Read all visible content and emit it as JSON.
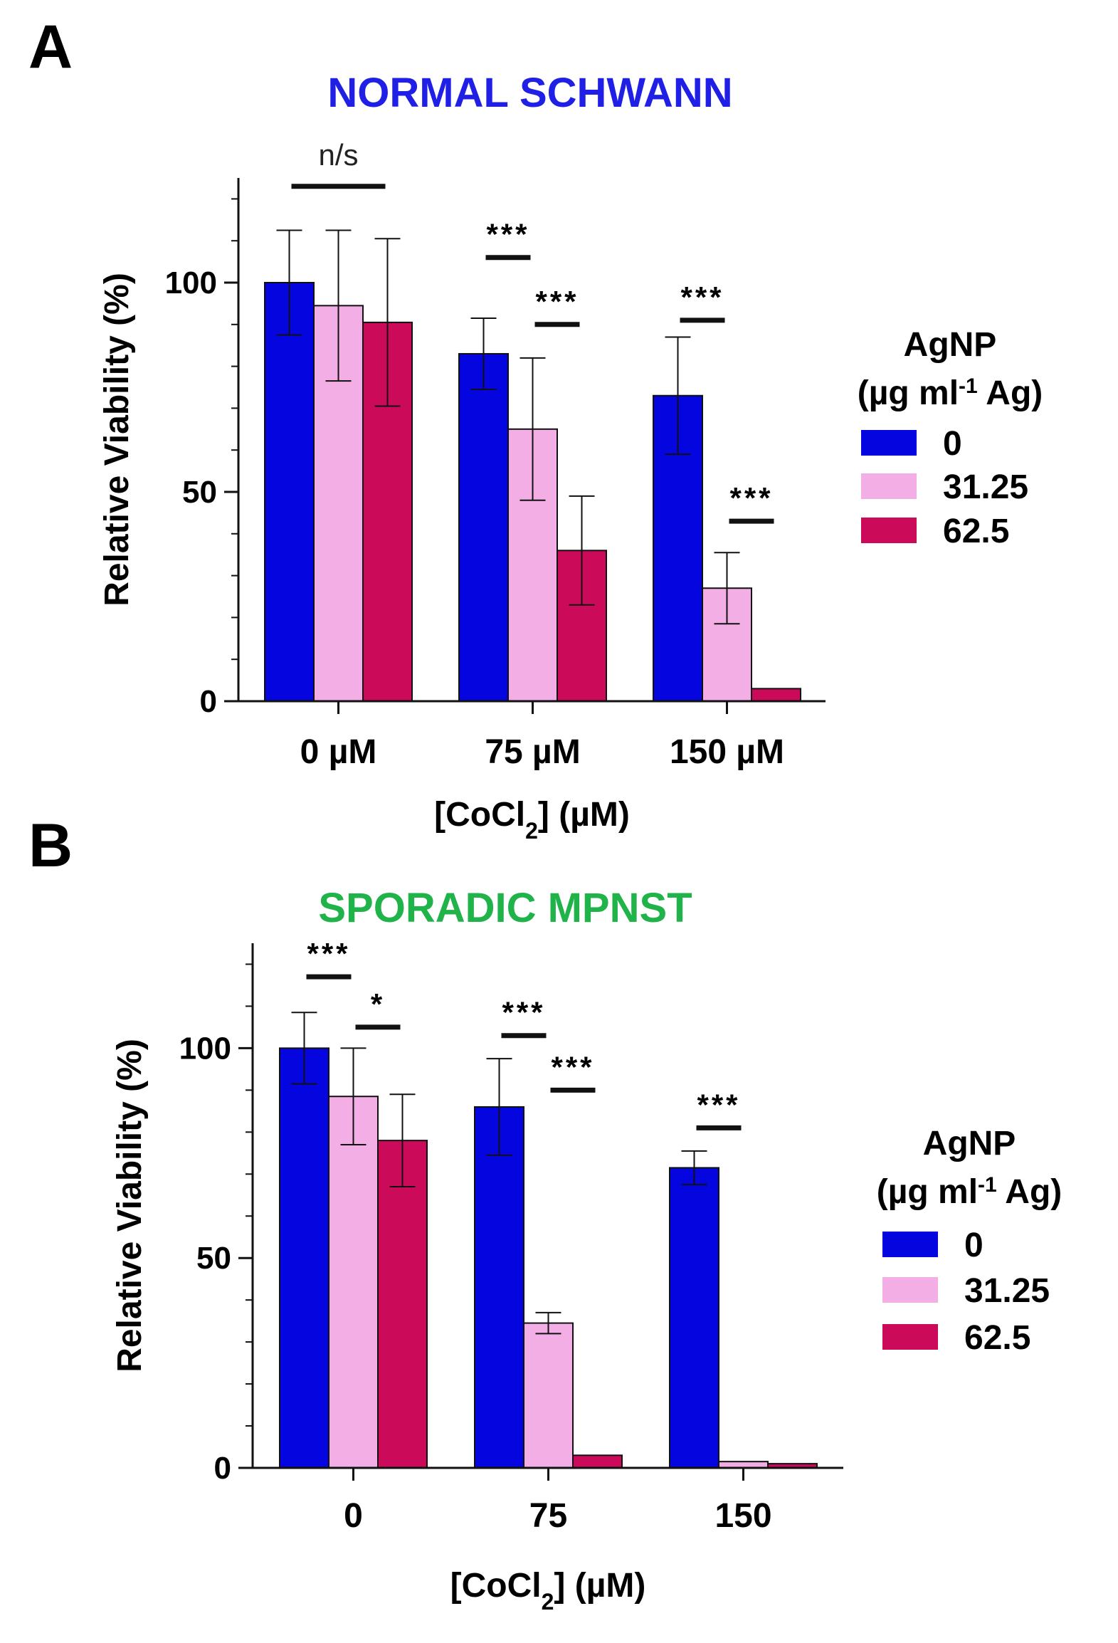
{
  "chart_data": [
    {
      "panel": "A",
      "type": "bar",
      "title": "NORMAL SCHWANN",
      "title_color": "#1f1fe6",
      "categories": [
        "0 µM",
        "75 µM",
        "150 µM"
      ],
      "xlabel": {
        "pre": "[CoCl",
        "sub": "2",
        "post": "] (µM)"
      },
      "ylabel": "Relative Viability (%)",
      "ylim": [
        0,
        125
      ],
      "yticks": [
        0,
        50,
        100
      ],
      "ytick_labels": [
        "0",
        "50",
        "100"
      ],
      "minor_tick_step": 10,
      "legend": {
        "title_line1": "AgNP",
        "title_line2": {
          "pre": "(µg ml",
          "sup": "-1",
          "post": " Ag)"
        },
        "position": "right",
        "entries": [
          "0",
          "31.25",
          "62.5"
        ]
      },
      "series": [
        {
          "name": "0",
          "color": "#0505e0",
          "values": [
            100,
            83,
            73
          ],
          "errors": [
            12.5,
            8.5,
            14
          ]
        },
        {
          "name": "31.25",
          "color": "#f4aee6",
          "values": [
            94.5,
            65,
            27
          ],
          "errors": [
            18,
            17,
            8.5
          ]
        },
        {
          "name": "62.5",
          "color": "#cc0a5a",
          "values": [
            90.5,
            36,
            3
          ],
          "errors": [
            20,
            13,
            0
          ]
        }
      ],
      "significance": [
        {
          "label": "n/s",
          "group": 0,
          "from": 0,
          "to": 2,
          "y": 123
        },
        {
          "label": "***",
          "group": 1,
          "from": 0,
          "to": 1,
          "y": 106
        },
        {
          "label": "***",
          "group": 1,
          "from": 1,
          "to": 2,
          "y": 90
        },
        {
          "label": "***",
          "group": 2,
          "from": 0,
          "to": 1,
          "y": 91
        },
        {
          "label": "***",
          "group": 2,
          "from": 1,
          "to": 2,
          "y": 43
        }
      ]
    },
    {
      "panel": "B",
      "type": "bar",
      "title": "SPORADIC MPNST",
      "title_color": "#1fb34a",
      "categories": [
        "0",
        "75",
        "150"
      ],
      "xlabel": {
        "pre": "[CoCl",
        "sub": "2",
        "post": "] (µM)"
      },
      "ylabel": "Relative Viability (%)",
      "ylim": [
        0,
        125
      ],
      "yticks": [
        0,
        50,
        100
      ],
      "ytick_labels": [
        "0",
        "50",
        "100"
      ],
      "minor_tick_step": 10,
      "legend": {
        "title_line1": "AgNP",
        "title_line2": {
          "pre": "(µg ml",
          "sup": "-1",
          "post": " Ag)"
        },
        "position": "right",
        "entries": [
          "0",
          "31.25",
          "62.5"
        ]
      },
      "series": [
        {
          "name": "0",
          "color": "#0505e0",
          "values": [
            100,
            86,
            71.5
          ],
          "errors": [
            8.5,
            11.5,
            4
          ]
        },
        {
          "name": "31.25",
          "color": "#f4aee6",
          "values": [
            88.5,
            34.5,
            1.5
          ],
          "errors": [
            11.5,
            2.5,
            0
          ]
        },
        {
          "name": "62.5",
          "color": "#cc0a5a",
          "values": [
            78,
            3,
            1
          ],
          "errors": [
            11,
            0,
            0
          ]
        }
      ],
      "significance": [
        {
          "label": "***",
          "group": 0,
          "from": 0,
          "to": 1,
          "y": 117
        },
        {
          "label": "*",
          "group": 0,
          "from": 1,
          "to": 2,
          "y": 105
        },
        {
          "label": "***",
          "group": 1,
          "from": 0,
          "to": 1,
          "y": 103
        },
        {
          "label": "***",
          "group": 1,
          "from": 1,
          "to": 2,
          "y": 90
        },
        {
          "label": "***",
          "group": 2,
          "from": 0,
          "to": 1,
          "y": 81
        }
      ]
    }
  ]
}
